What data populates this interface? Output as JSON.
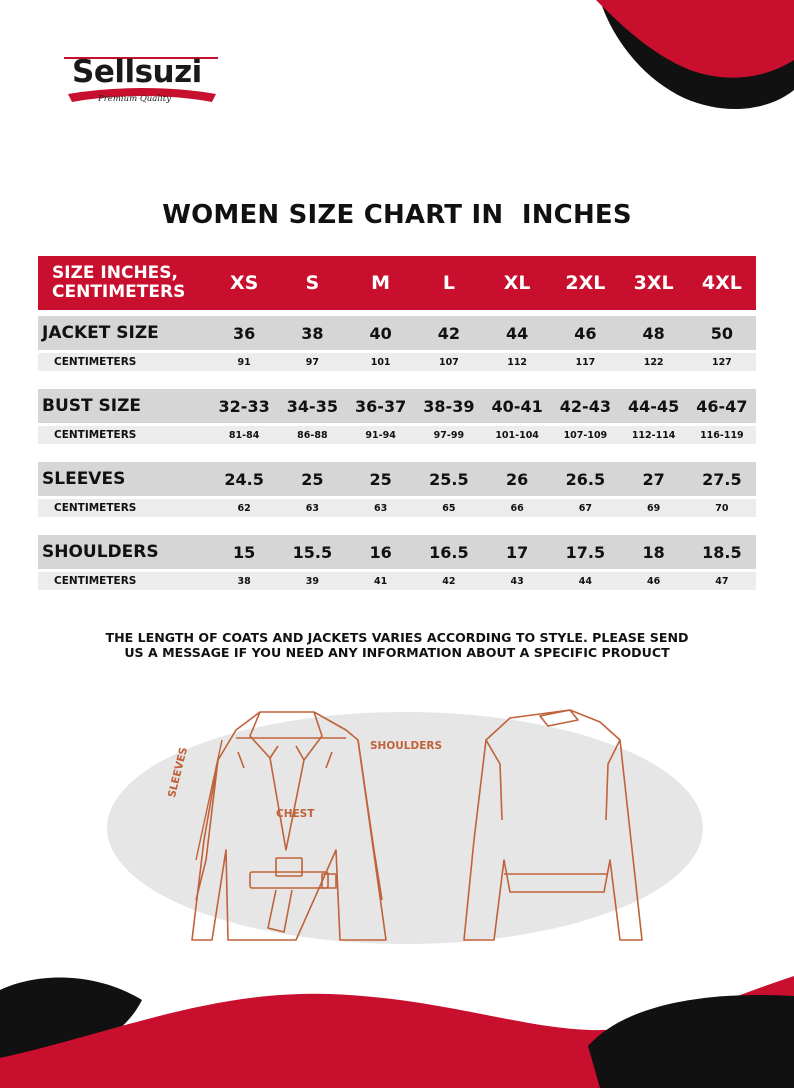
{
  "brand": {
    "name": "Sellsuzi",
    "tagline": "Premium Quality",
    "colors": {
      "accent": "#c8102e",
      "dark": "#111111",
      "row_gray": "#d6d6d6",
      "subrow_gray": "#ececec",
      "sketch": "#c0623a"
    }
  },
  "title": "WOMEN SIZE CHART IN  INCHES",
  "table": {
    "header_label": "SIZE INCHES, CENTIMETERS",
    "sizes": [
      "XS",
      "S",
      "M",
      "L",
      "XL",
      "2XL",
      "3XL",
      "4XL"
    ],
    "groups": [
      {
        "label": "JACKET SIZE",
        "inches": [
          "36",
          "38",
          "40",
          "42",
          "44",
          "46",
          "48",
          "50"
        ],
        "cm_label": "CENTIMETERS",
        "cm": [
          "91",
          "97",
          "101",
          "107",
          "112",
          "117",
          "122",
          "127"
        ]
      },
      {
        "label": "BUST SIZE",
        "inches": [
          "32-33",
          "34-35",
          "36-37",
          "38-39",
          "40-41",
          "42-43",
          "44-45",
          "46-47"
        ],
        "cm_label": "CENTIMETERS",
        "cm": [
          "81-84",
          "86-88",
          "91-94",
          "97-99",
          "101-104",
          "107-109",
          "112-114",
          "116-119"
        ]
      },
      {
        "label": "SLEEVES",
        "inches": [
          "24.5",
          "25",
          "25",
          "25.5",
          "26",
          "26.5",
          "27",
          "27.5"
        ],
        "cm_label": "CENTIMETERS",
        "cm": [
          "62",
          "63",
          "63",
          "65",
          "66",
          "67",
          "69",
          "70"
        ]
      },
      {
        "label": "SHOULDERS",
        "inches": [
          "15",
          "15.5",
          "16",
          "16.5",
          "17",
          "17.5",
          "18",
          "18.5"
        ],
        "cm_label": "CENTIMETERS",
        "cm": [
          "38",
          "39",
          "41",
          "42",
          "43",
          "44",
          "46",
          "47"
        ]
      }
    ]
  },
  "note": {
    "line1": "THE LENGTH OF COATS AND JACKETS VARIES ACCORDING TO STYLE. PLEASE SEND",
    "line2": "US A MESSAGE IF YOU NEED ANY INFORMATION ABOUT A SPECIFIC PRODUCT"
  },
  "illustration": {
    "labels": {
      "shoulders": "SHOULDERS",
      "sleeves": "SLEEVES",
      "chest": "CHEST"
    },
    "icons": [
      "jacket-front-sketch-icon",
      "jacket-back-sketch-icon"
    ]
  }
}
